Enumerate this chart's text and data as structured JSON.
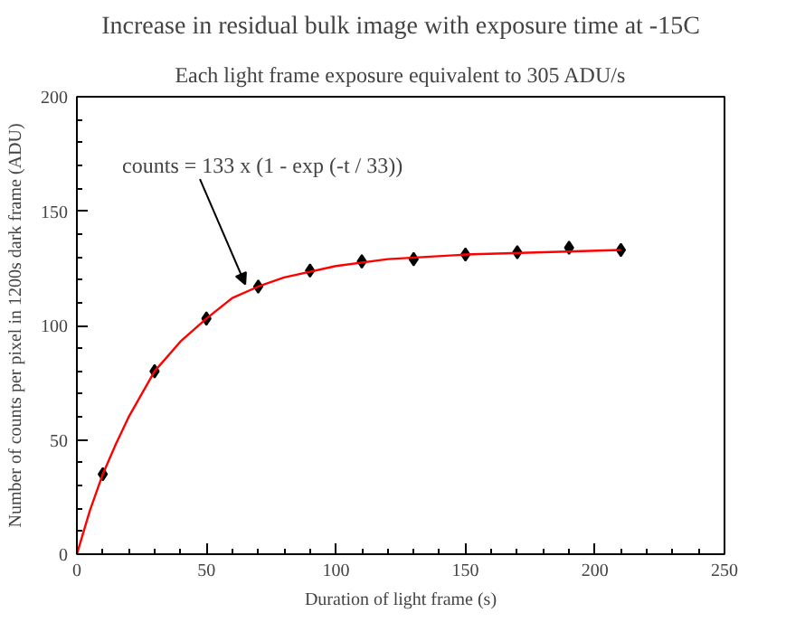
{
  "chart_data": {
    "type": "scatter",
    "title": "Increase in residual bulk image with exposure time at -15C",
    "subtitle": "Each light frame exposure equivalent to 305 ADU/s",
    "xlabel": "Duration of light frame (s)",
    "ylabel": "Number of counts per pixel in 1200s dark frame (ADU)",
    "series": [
      {
        "color": "#000000",
        "marker": "diamond",
        "x": [
          10,
          30,
          50,
          70,
          90,
          110,
          130,
          150,
          170,
          190,
          210
        ],
        "values": [
          35,
          80,
          103,
          117,
          124,
          128,
          129,
          131,
          132,
          134,
          133
        ]
      },
      {
        "type": "line",
        "color": "#ff0000",
        "marker": "none",
        "x": [
          0,
          5,
          10,
          15,
          20,
          30,
          40,
          50,
          60,
          70,
          80,
          100,
          120,
          150,
          180,
          210
        ],
        "values": [
          0,
          19,
          35,
          48,
          60,
          80,
          93,
          103,
          112,
          117,
          121,
          126,
          129,
          131,
          132,
          133
        ]
      }
    ],
    "xlim": [
      0,
      250
    ],
    "ylim": [
      0,
      200
    ],
    "xticks": [
      0,
      50,
      100,
      150,
      200,
      250
    ],
    "yticks": [
      0,
      50,
      100,
      150,
      200
    ],
    "grid": false,
    "annotations": [
      {
        "text": "counts = 133 x (1 - exp (-t / 33))",
        "x": 65,
        "y": 115
      }
    ]
  }
}
